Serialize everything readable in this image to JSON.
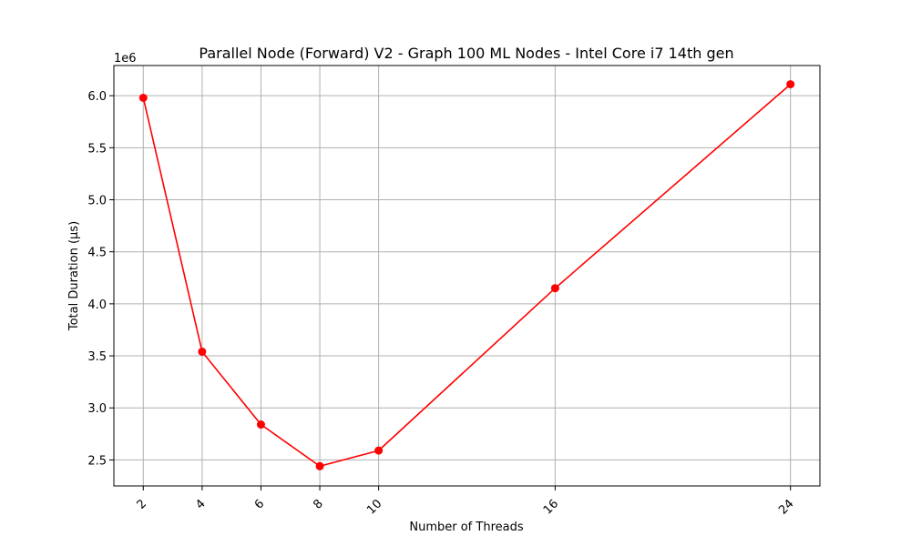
{
  "chart_data": {
    "type": "line",
    "title": "Parallel Node (Forward) V2 - Graph 100 ML Nodes - Intel Core i7 14th gen",
    "xlabel": "Number of Threads",
    "ylabel": "Total Duration (µs)",
    "y_offset_label": "1e6",
    "x": [
      2,
      4,
      6,
      8,
      10,
      16,
      24
    ],
    "x_tick_labels": [
      "2",
      "4",
      "6",
      "8",
      "10",
      "16",
      "24"
    ],
    "series": [
      {
        "values": [
          5980000,
          3540000,
          2840000,
          2440000,
          2590000,
          4150000,
          6110000
        ]
      }
    ],
    "y_ticks": [
      2.5,
      3.0,
      3.5,
      4.0,
      4.5,
      5.0,
      5.5,
      6.0
    ],
    "y_tick_labels": [
      "2.5",
      "3.0",
      "3.5",
      "4.0",
      "4.5",
      "5.0",
      "5.5",
      "6.0"
    ],
    "y_tick_scale": 1000000,
    "xlim": [
      1.0,
      25.0
    ],
    "ylim": [
      2250000,
      6290000
    ],
    "grid": true,
    "line_color": "#ff0000",
    "grid_color": "#b0b0b0"
  }
}
